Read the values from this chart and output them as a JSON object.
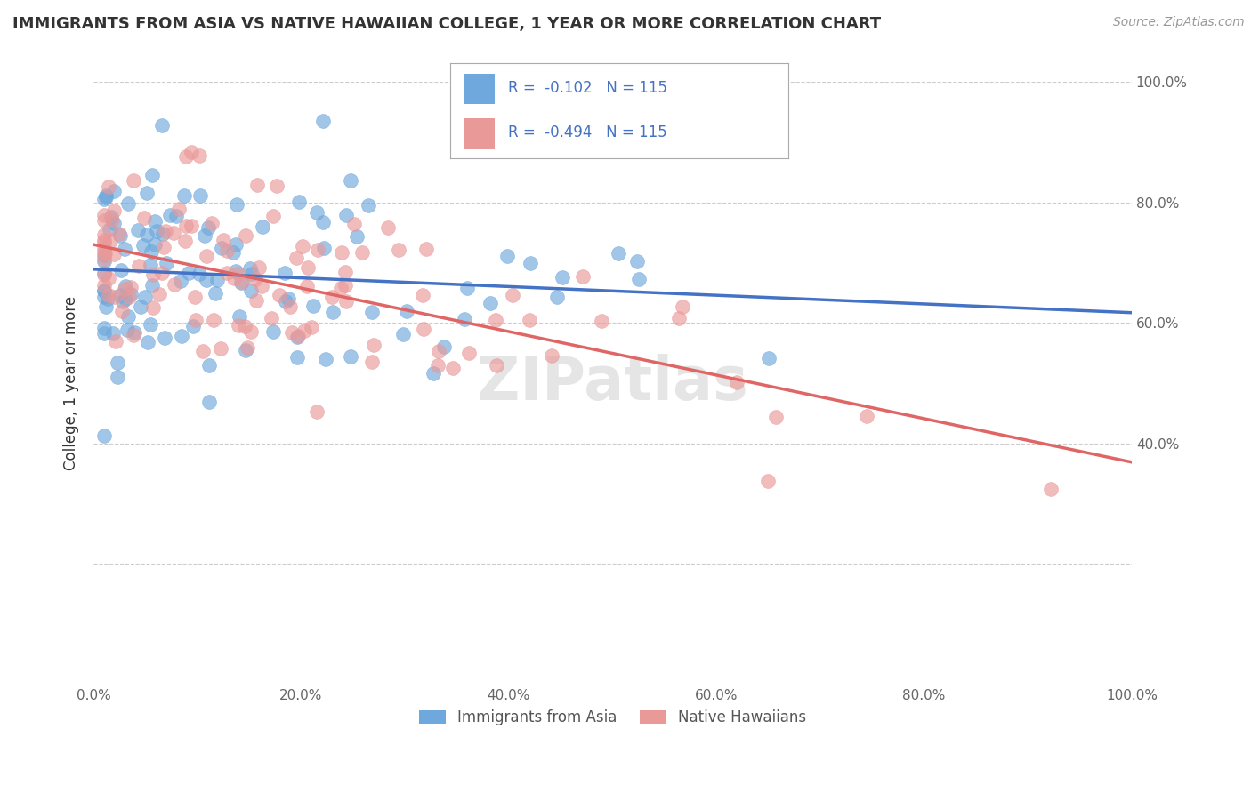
{
  "title": "IMMIGRANTS FROM ASIA VS NATIVE HAWAIIAN COLLEGE, 1 YEAR OR MORE CORRELATION CHART",
  "source": "Source: ZipAtlas.com",
  "ylabel": "College, 1 year or more",
  "legend_label1": "Immigrants from Asia",
  "legend_label2": "Native Hawaiians",
  "R1": "-0.102",
  "N1": "115",
  "R2": "-0.494",
  "N2": "115",
  "color_blue": "#6fa8dc",
  "color_pink": "#ea9999",
  "line_color_blue": "#4472c4",
  "line_color_pink": "#e06666",
  "background_color": "#ffffff",
  "grid_color": "#cccccc"
}
